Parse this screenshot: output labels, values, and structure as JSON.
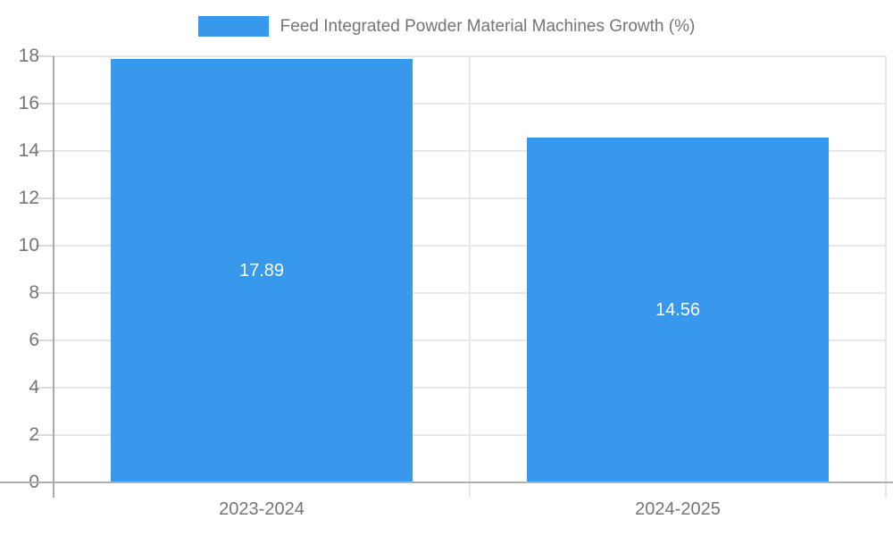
{
  "legend": {
    "label": "Feed Integrated Powder Material Machines Growth (%)"
  },
  "colors": {
    "bar": "#3899ec",
    "axis_text": "#757575",
    "bar_label_text": "#ffffff",
    "gridline": "#e8e8e8",
    "axis_line": "#b0b0b0",
    "background": "#ffffff"
  },
  "chart_data": {
    "type": "bar",
    "title": "Feed Integrated Powder Material Machines Growth (%)",
    "categories": [
      "2023-2024",
      "2024-2025"
    ],
    "values": [
      17.89,
      14.56
    ],
    "bar_labels": [
      "17.89",
      "14.56"
    ],
    "xlabel": "",
    "ylabel": "",
    "ylim": [
      0,
      18
    ],
    "yticks": [
      0,
      2,
      4,
      6,
      8,
      10,
      12,
      14,
      16,
      18
    ],
    "grid": "on",
    "legend_position": "top-center",
    "bar_label_position": "center-inside"
  }
}
